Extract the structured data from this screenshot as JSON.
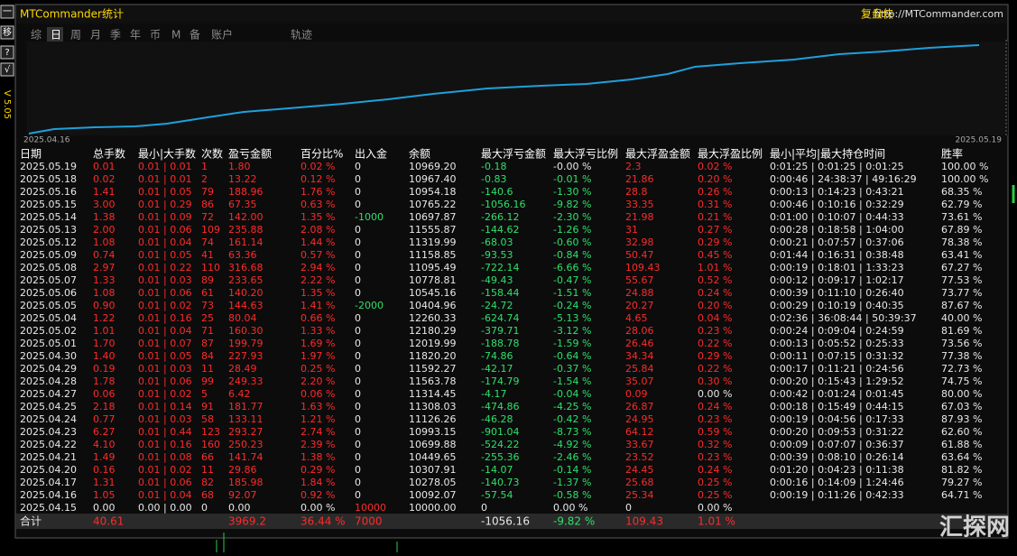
{
  "header": {
    "title": "MTCommander统计",
    "brand": "复盘侠",
    "url": "http://MTCommander.com"
  },
  "sidebar": {
    "buttons": [
      "一",
      "移",
      "?",
      "√"
    ],
    "version": "V 5.05"
  },
  "tabs": [
    "综",
    "日",
    "周",
    "月",
    "季",
    "年",
    "币",
    "M",
    "备",
    "账户",
    "轨迹"
  ],
  "curve": {
    "start_label": "2025.04.16",
    "end_label": "2025.05.19"
  },
  "table": {
    "headers": [
      "日期",
      "总手数",
      "最小|大手数",
      "次数",
      "盈亏金额",
      "百分比%",
      "出入金",
      "余额",
      "最大浮亏金额",
      "最大浮亏比例",
      "最大浮盈金额",
      "最大浮盈比例",
      "最小|平均|最大持仓时间",
      "胜率"
    ],
    "rows": [
      [
        "2025.05.19",
        "0.01",
        "0.01 | 0.01",
        "1",
        "1.80",
        "0.02 %",
        "0",
        "10969.20",
        "-0.18",
        "-0.00 %",
        "2.3",
        "0.02 %",
        "0:01:25 | 0:01:25 | 0:01:25",
        "100.00 %"
      ],
      [
        "2025.05.18",
        "0.02",
        "0.01 | 0.01",
        "2",
        "13.22",
        "0.12 %",
        "0",
        "10967.40",
        "-0.83",
        "-0.01 %",
        "21.86",
        "0.20 %",
        "0:00:46 | 24:38:37 | 49:16:29",
        "100.00 %"
      ],
      [
        "2025.05.16",
        "1.41",
        "0.01 | 0.05",
        "79",
        "188.96",
        "1.76 %",
        "0",
        "10954.18",
        "-140.6",
        "-1.30 %",
        "28.8",
        "0.26 %",
        "0:00:13 | 0:14:23 | 0:43:21",
        "68.35 %"
      ],
      [
        "2025.05.15",
        "3.00",
        "0.01 | 0.29",
        "86",
        "67.35",
        "0.63 %",
        "0",
        "10765.22",
        "-1056.16",
        "-9.82 %",
        "33.35",
        "0.31 %",
        "0:00:46 | 0:10:16 | 0:32:29",
        "62.79 %"
      ],
      [
        "2025.05.14",
        "1.38",
        "0.01 | 0.09",
        "72",
        "142.00",
        "1.35 %",
        "-1000",
        "10697.87",
        "-266.12",
        "-2.30 %",
        "21.98",
        "0.21 %",
        "0:01:00 | 0:10:07 | 0:44:33",
        "73.61 %"
      ],
      [
        "2025.05.13",
        "2.00",
        "0.01 | 0.06",
        "109",
        "235.88",
        "2.08 %",
        "0",
        "11555.87",
        "-144.62",
        "-1.26 %",
        "31",
        "0.27 %",
        "0:00:28 | 0:18:58 | 1:04:00",
        "67.89 %"
      ],
      [
        "2025.05.12",
        "1.08",
        "0.01 | 0.04",
        "74",
        "161.14",
        "1.44 %",
        "0",
        "11319.99",
        "-68.03",
        "-0.60 %",
        "32.98",
        "0.29 %",
        "0:00:21 | 0:07:57 | 0:37:06",
        "78.38 %"
      ],
      [
        "2025.05.09",
        "0.74",
        "0.01 | 0.05",
        "41",
        "63.36",
        "0.57 %",
        "0",
        "11158.85",
        "-93.53",
        "-0.84 %",
        "50.47",
        "0.45 %",
        "0:01:44 | 0:16:31 | 0:38:48",
        "63.41 %"
      ],
      [
        "2025.05.08",
        "2.97",
        "0.01 | 0.22",
        "110",
        "316.68",
        "2.94 %",
        "0",
        "11095.49",
        "-722.14",
        "-6.66 %",
        "109.43",
        "1.01 %",
        "0:00:19 | 0:18:01 | 1:33:23",
        "67.27 %"
      ],
      [
        "2025.05.07",
        "1.33",
        "0.01 | 0.03",
        "89",
        "233.65",
        "2.22 %",
        "0",
        "10778.81",
        "-49.43",
        "-0.47 %",
        "55.67",
        "0.52 %",
        "0:00:12 | 0:09:17 | 1:02:17",
        "77.53 %"
      ],
      [
        "2025.05.06",
        "1.08",
        "0.01 | 0.06",
        "61",
        "140.20",
        "1.35 %",
        "0",
        "10545.16",
        "-158.44",
        "-1.51 %",
        "24.88",
        "0.24 %",
        "0:00:39 | 0:11:10 | 0:26:40",
        "73.77 %"
      ],
      [
        "2025.05.05",
        "0.90",
        "0.01 | 0.02",
        "73",
        "144.63",
        "1.41 %",
        "-2000",
        "10404.96",
        "-24.72",
        "-0.24 %",
        "20.27",
        "0.20 %",
        "0:00:29 | 0:10:19 | 0:40:35",
        "87.67 %"
      ],
      [
        "2025.05.04",
        "1.22",
        "0.01 | 0.16",
        "25",
        "80.04",
        "0.66 %",
        "0",
        "12260.33",
        "-624.74",
        "-5.13 %",
        "4.65",
        "0.04 %",
        "0:02:36 | 36:08:44 | 50:39:37",
        "40.00 %"
      ],
      [
        "2025.05.02",
        "1.01",
        "0.01 | 0.04",
        "71",
        "160.30",
        "1.33 %",
        "0",
        "12180.29",
        "-379.71",
        "-3.12 %",
        "28.06",
        "0.23 %",
        "0:00:24 | 0:09:04 | 0:24:59",
        "81.69 %"
      ],
      [
        "2025.05.01",
        "1.70",
        "0.01 | 0.07",
        "87",
        "199.79",
        "1.69 %",
        "0",
        "12019.99",
        "-188.78",
        "-1.59 %",
        "26.46",
        "0.22 %",
        "0:00:13 | 0:05:52 | 0:25:33",
        "73.56 %"
      ],
      [
        "2025.04.30",
        "1.40",
        "0.01 | 0.05",
        "84",
        "227.93",
        "1.97 %",
        "0",
        "11820.20",
        "-74.86",
        "-0.64 %",
        "34.34",
        "0.29 %",
        "0:00:11 | 0:07:15 | 0:31:32",
        "77.38 %"
      ],
      [
        "2025.04.29",
        "0.19",
        "0.01 | 0.03",
        "11",
        "28.49",
        "0.25 %",
        "0",
        "11592.27",
        "-42.17",
        "-0.37 %",
        "25.84",
        "0.22 %",
        "0:00:17 | 0:11:21 | 0:24:56",
        "72.73 %"
      ],
      [
        "2025.04.28",
        "1.78",
        "0.01 | 0.06",
        "99",
        "249.33",
        "2.20 %",
        "0",
        "11563.78",
        "-174.79",
        "-1.54 %",
        "35.07",
        "0.30 %",
        "0:00:20 | 0:15:43 | 1:29:52",
        "74.75 %"
      ],
      [
        "2025.04.27",
        "0.06",
        "0.01 | 0.02",
        "5",
        "6.42",
        "0.06 %",
        "0",
        "11314.45",
        "-4.17",
        "-0.04 %",
        "0.09",
        "0.00 %",
        "0:00:42 | 0:01:24 | 0:01:45",
        "80.00 %"
      ],
      [
        "2025.04.25",
        "2.18",
        "0.01 | 0.14",
        "91",
        "181.77",
        "1.63 %",
        "0",
        "11308.03",
        "-474.86",
        "-4.25 %",
        "26.87",
        "0.24 %",
        "0:00:18 | 0:15:49 | 0:44:15",
        "67.03 %"
      ],
      [
        "2025.04.24",
        "0.77",
        "0.01 | 0.03",
        "58",
        "133.11",
        "1.21 %",
        "0",
        "11126.26",
        "-46.28",
        "-0.42 %",
        "24.95",
        "0.23 %",
        "0:00:19 | 0:04:56 | 0:17:33",
        "87.93 %"
      ],
      [
        "2025.04.23",
        "6.27",
        "0.01 | 0.44",
        "123",
        "293.27",
        "2.74 %",
        "0",
        "10993.15",
        "-901.04",
        "-8.73 %",
        "64.12",
        "0.59 %",
        "0:00:20 | 0:09:53 | 0:31:22",
        "62.60 %"
      ],
      [
        "2025.04.22",
        "4.10",
        "0.01 | 0.16",
        "160",
        "250.23",
        "2.39 %",
        "0",
        "10699.88",
        "-524.22",
        "-4.92 %",
        "33.67",
        "0.32 %",
        "0:00:09 | 0:07:07 | 0:36:37",
        "61.88 %"
      ],
      [
        "2025.04.21",
        "1.49",
        "0.01 | 0.08",
        "66",
        "141.74",
        "1.38 %",
        "0",
        "10449.65",
        "-255.36",
        "-2.46 %",
        "23.52",
        "0.23 %",
        "0:00:39 | 0:08:10 | 0:26:14",
        "63.64 %"
      ],
      [
        "2025.04.20",
        "0.16",
        "0.01 | 0.02",
        "11",
        "29.86",
        "0.29 %",
        "0",
        "10307.91",
        "-14.07",
        "-0.14 %",
        "24.45",
        "0.24 %",
        "0:01:20 | 0:04:23 | 0:11:38",
        "81.82 %"
      ],
      [
        "2025.04.17",
        "1.31",
        "0.01 | 0.06",
        "82",
        "185.98",
        "1.84 %",
        "0",
        "10278.05",
        "-140.73",
        "-1.37 %",
        "25.68",
        "0.25 %",
        "0:00:16 | 0:14:09 | 1:24:46",
        "79.27 %"
      ],
      [
        "2025.04.16",
        "1.05",
        "0.01 | 0.04",
        "68",
        "92.07",
        "0.92 %",
        "0",
        "10092.07",
        "-57.54",
        "-0.58 %",
        "25.34",
        "0.25 %",
        "0:00:19 | 0:11:26 | 0:42:33",
        "64.71 %"
      ],
      [
        "2025.04.15",
        "0.00",
        "0.00 | 0.00",
        "0",
        "0.00",
        "0.00 %",
        "10000",
        "10000.00",
        "0",
        "0.00 %",
        "0",
        "0.00 %"
      ]
    ],
    "total": {
      "label": "合计",
      "lots": "40.61",
      "pnl": "3969.2",
      "percent": "36.44 %",
      "deposit": "7000",
      "max_loss": "-1056.16",
      "max_loss_pct": "-9.82 %",
      "max_profit": "109.43",
      "max_profit_pct": "1.01 %"
    }
  },
  "watermark": "汇探网"
}
